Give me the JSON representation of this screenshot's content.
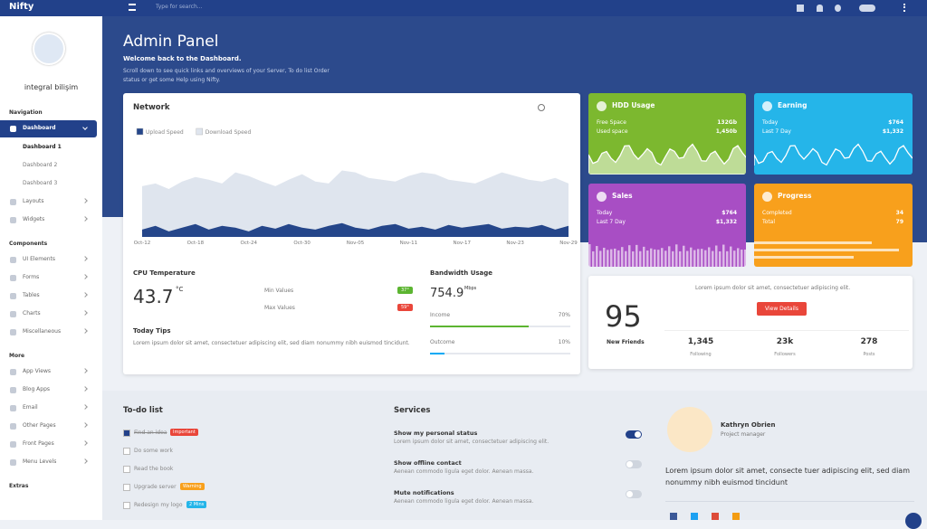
{
  "topbar": {
    "brand": "Nifty",
    "search_placeholder": "Type for search..."
  },
  "sidebar": {
    "user": "integral bilişim",
    "sections": [
      {
        "title": "Navigation",
        "items": [
          {
            "label": "Dashboard",
            "children": [
              "Dashboard 1",
              "Dashboard 2",
              "Dashboard 3"
            ]
          },
          {
            "label": "Layouts"
          },
          {
            "label": "Widgets"
          }
        ]
      },
      {
        "title": "Components",
        "items": [
          {
            "label": "UI Elements"
          },
          {
            "label": "Forms"
          },
          {
            "label": "Tables"
          },
          {
            "label": "Charts"
          },
          {
            "label": "Miscellaneous"
          }
        ]
      },
      {
        "title": "More",
        "items": [
          {
            "label": "App Views"
          },
          {
            "label": "Blog Apps"
          },
          {
            "label": "Email"
          },
          {
            "label": "Other Pages"
          },
          {
            "label": "Front Pages"
          },
          {
            "label": "Menu Levels"
          }
        ]
      },
      {
        "title": "Extras",
        "items": []
      }
    ]
  },
  "header": {
    "title": "Admin Panel",
    "subtitle": "Welcome back to the Dashboard.",
    "description": "Scroll down to see quick links and overviews of your Server, To do list Order status or get some Help using Nifty."
  },
  "chart_data": {
    "type": "area",
    "title": "Network",
    "categories": [
      "Oct-12",
      null,
      null,
      null,
      "Oct-18",
      null,
      null,
      null,
      "Oct-24",
      null,
      null,
      null,
      "Oct-30",
      null,
      null,
      null,
      "Nov-05",
      null,
      null,
      null,
      "Nov-11",
      null,
      null,
      null,
      "Nov-17",
      null,
      null,
      null,
      "Nov-23",
      null,
      null,
      null,
      "Nov-29"
    ],
    "ylim": [
      0,
      100
    ],
    "series": [
      {
        "name": "Download Speed",
        "color": "#dfe5ee",
        "values": [
          55,
          58,
          52,
          60,
          65,
          62,
          58,
          70,
          66,
          60,
          55,
          62,
          68,
          60,
          58,
          72,
          70,
          64,
          62,
          60,
          66,
          70,
          68,
          62,
          60,
          58,
          64,
          70,
          66,
          62,
          60,
          64,
          58
        ]
      },
      {
        "name": "Upload Speed",
        "color": "#25468a",
        "values": [
          8,
          12,
          6,
          10,
          14,
          8,
          12,
          10,
          6,
          12,
          9,
          14,
          10,
          8,
          12,
          15,
          10,
          8,
          12,
          14,
          9,
          11,
          8,
          13,
          10,
          12,
          14,
          9,
          11,
          10,
          13,
          8,
          12
        ]
      }
    ]
  },
  "cpu": {
    "title": "CPU Temperature",
    "value": "43.7",
    "unit": "°C",
    "min_label": "Min Values",
    "min": "37°",
    "max_label": "Max Values",
    "max": "59°"
  },
  "tips": {
    "title": "Today Tips",
    "text": "Lorem ipsum dolor sit amet, consectetuer adipiscing elit, sed diam nonummy nibh euismod tincidunt."
  },
  "bandwidth": {
    "title": "Bandwidth Usage",
    "value": "754.9",
    "unit": "Mbps",
    "bars": [
      {
        "label": "Income",
        "value": 70,
        "value_label": "70%"
      },
      {
        "label": "Outcome",
        "value": 10,
        "value_label": "10%"
      }
    ]
  },
  "cards": [
    {
      "title": "HDD Usage",
      "rows": [
        [
          "Free Space",
          "132Gb"
        ],
        [
          "Used space",
          "1,450b"
        ]
      ]
    },
    {
      "title": "Earning",
      "rows": [
        [
          "Today",
          "$764"
        ],
        [
          "Last 7 Day",
          "$1,332"
        ]
      ]
    },
    {
      "title": "Sales",
      "rows": [
        [
          "Today",
          "$764"
        ],
        [
          "Last 7 Day",
          "$1,332"
        ]
      ]
    },
    {
      "title": "Progress",
      "rows": [
        [
          "Completed",
          "34"
        ],
        [
          "Total",
          "79"
        ]
      ]
    }
  ],
  "friends": {
    "text": "Lorem ipsum dolor sit amet, consectetuer adipiscing elit.",
    "button": "View Details",
    "count": 95,
    "label": "New Friends",
    "stats": [
      [
        "1,345",
        "Following"
      ],
      [
        "23k",
        "Followers"
      ],
      [
        278,
        "Posts"
      ]
    ]
  },
  "todo": {
    "title": "To-do list",
    "items": [
      {
        "text": "Find an idea",
        "tag": "Important"
      },
      {
        "text": "Do some work"
      },
      {
        "text": "Read the book"
      },
      {
        "text": "Upgrade server",
        "tag": "Warning"
      },
      {
        "text": "Redesign my logo",
        "tag": "2 Mins"
      }
    ]
  },
  "services": {
    "title": "Services",
    "items": [
      {
        "title": "Show my personal status",
        "text": "Lorem ipsum dolor sit amet, consectetuer adipiscing elit."
      },
      {
        "title": "Show offline contact",
        "text": "Aenean commodo ligula eget dolor. Aenean massa."
      },
      {
        "title": "Mute notifications",
        "text": "Aenean commodo ligula eget dolor. Aenean massa."
      }
    ]
  },
  "profile": {
    "name": "Kathryn Obrien",
    "role": "Project manager",
    "quote": "Lorem ipsum dolor sit amet, consecte tuer adipiscing elit, sed diam nonummy nibh euismod tincidunt"
  }
}
